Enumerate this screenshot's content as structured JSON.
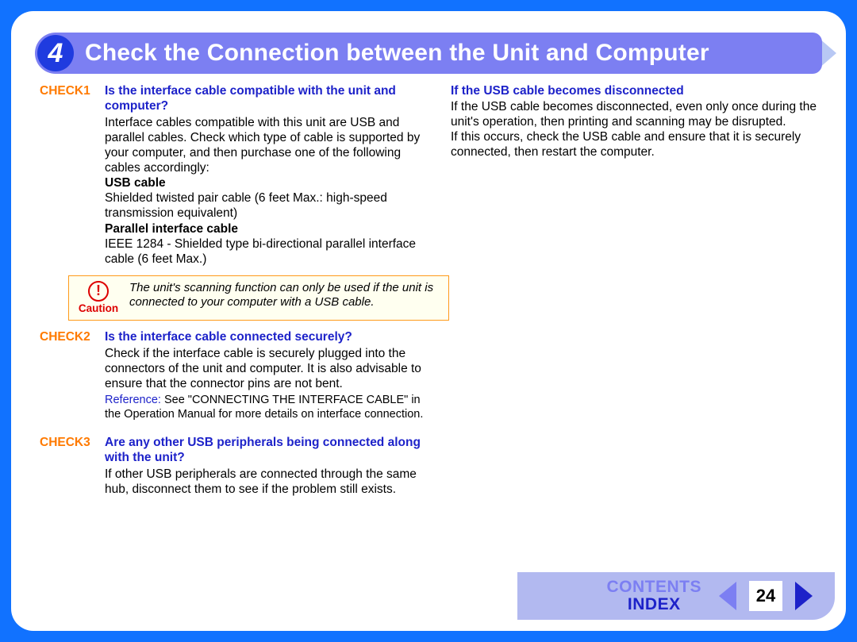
{
  "header": {
    "number": "4",
    "title": "Check the Connection between the Unit and Computer"
  },
  "checks": [
    {
      "label": "CHECK1",
      "question": "Is the interface cable compatible with the unit and computer?",
      "body": "Interface cables compatible with this unit are USB and parallel cables. Check which type of cable is supported by your computer, and then purchase one of the following cables accordingly:",
      "sub": [
        {
          "title": "USB cable",
          "body": "Shielded twisted pair cable (6 feet Max.: high-speed transmission equivalent)"
        },
        {
          "title": "Parallel interface cable",
          "body": "IEEE 1284 - Shielded type bi-directional parallel interface cable (6 feet Max.)"
        }
      ]
    },
    {
      "label": "CHECK2",
      "question": "Is the interface cable connected securely?",
      "body": "Check if the interface cable is securely plugged into the connectors of the unit and computer. It is also advisable to ensure that the connector pins are not bent.",
      "reference": {
        "label": "Reference:",
        "body": "See \"CONNECTING THE INTERFACE CABLE\" in the Operation Manual for more details on interface connection."
      }
    },
    {
      "label": "CHECK3",
      "question": "Are any other USB peripherals being connected along with the unit?",
      "body": "If other USB peripherals are connected through the same hub, disconnect them to see if the problem still exists."
    }
  ],
  "caution": {
    "label": "Caution",
    "text": "The unit's scanning function can only be used if the unit is connected to your computer with a USB cable."
  },
  "right": {
    "heading": "If the USB cable becomes disconnected",
    "p1": "If the USB cable becomes disconnected, even only once during the unit's operation, then printing and scanning may be disrupted.",
    "p2": "If this occurs, check the USB cable and ensure that it is securely connected, then restart the computer."
  },
  "footer": {
    "contents": "CONTENTS",
    "index": "INDEX",
    "page": "24"
  },
  "colors": {
    "frame_blue": "#1172ff",
    "header_purple": "#7c7ff2",
    "header_circle": "#1f3bdf",
    "check_orange": "#ff7a00",
    "link_blue": "#1d22c9",
    "caution_red": "#d00000",
    "caution_border": "#ff9a1a",
    "caution_bg": "#fffff0",
    "footer_bg": "#b2b9f0"
  }
}
